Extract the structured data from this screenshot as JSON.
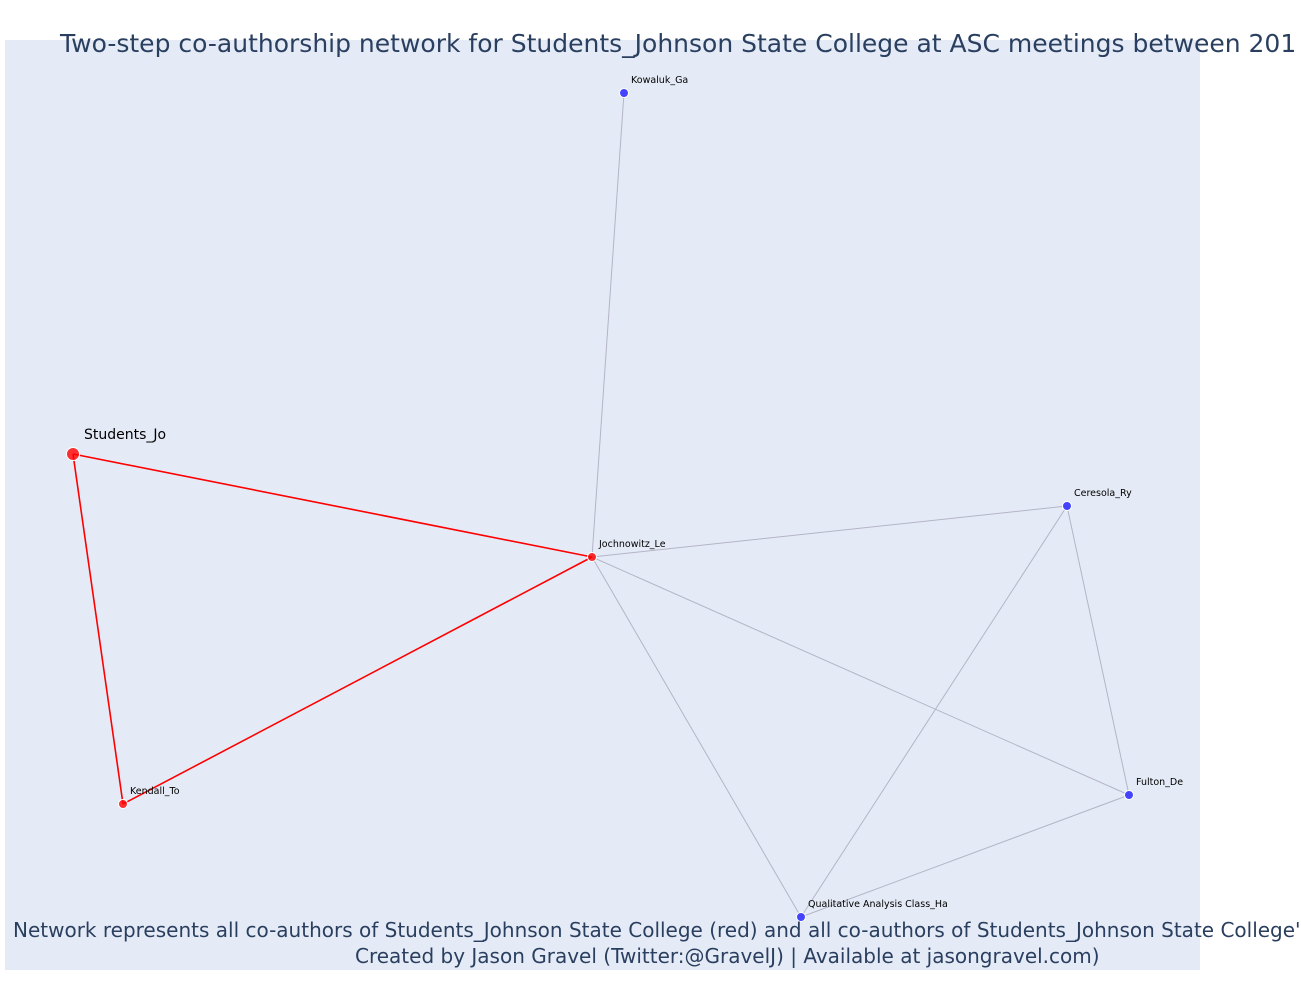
{
  "title": "Two-step co-authorship network for Students_Johnson State College at ASC meetings between 201",
  "caption": {
    "line1": "Network represents all co-authors of Students_Johnson State College (red) and all co-authors of Students_Johnson State College'",
    "line2": "Created by Jason Gravel (Twitter:@GravelJ) | Available at jasongravel.com)"
  },
  "colors": {
    "background": "#e5ebf6",
    "first_step": "#ff0000",
    "second_step": "#3b3bff",
    "second_step_edge": "#b4b4c8",
    "text": "#2a3f5f"
  },
  "network": {
    "nodes": [
      {
        "id": "Students_Jo",
        "label": "Students_Jo",
        "group": "focal"
      },
      {
        "id": "Jochnowitz_Le",
        "label": "Jochnowitz_Le",
        "group": "first_step"
      },
      {
        "id": "Kendall_To",
        "label": "Kendall_To",
        "group": "first_step"
      },
      {
        "id": "Kowaluk_Ga",
        "label": "Kowaluk_Ga",
        "group": "second_step"
      },
      {
        "id": "Ceresola_Ry",
        "label": "Ceresola_Ry",
        "group": "second_step"
      },
      {
        "id": "Fulton_De",
        "label": "Fulton_De",
        "group": "second_step"
      },
      {
        "id": "Qualitative Analysis Class_Ha",
        "label": "Qualitative Analysis Class_Ha",
        "group": "second_step"
      }
    ],
    "edges": [
      {
        "source": "Students_Jo",
        "target": "Jochnowitz_Le",
        "group": "first_step"
      },
      {
        "source": "Students_Jo",
        "target": "Kendall_To",
        "group": "first_step"
      },
      {
        "source": "Kendall_To",
        "target": "Jochnowitz_Le",
        "group": "first_step"
      },
      {
        "source": "Jochnowitz_Le",
        "target": "Kowaluk_Ga",
        "group": "second_step"
      },
      {
        "source": "Jochnowitz_Le",
        "target": "Ceresola_Ry",
        "group": "second_step"
      },
      {
        "source": "Jochnowitz_Le",
        "target": "Fulton_De",
        "group": "second_step"
      },
      {
        "source": "Jochnowitz_Le",
        "target": "Qualitative Analysis Class_Ha",
        "group": "second_step"
      },
      {
        "source": "Ceresola_Ry",
        "target": "Fulton_De",
        "group": "second_step"
      },
      {
        "source": "Ceresola_Ry",
        "target": "Qualitative Analysis Class_Ha",
        "group": "second_step"
      },
      {
        "source": "Fulton_De",
        "target": "Qualitative Analysis Class_Ha",
        "group": "second_step"
      }
    ]
  }
}
